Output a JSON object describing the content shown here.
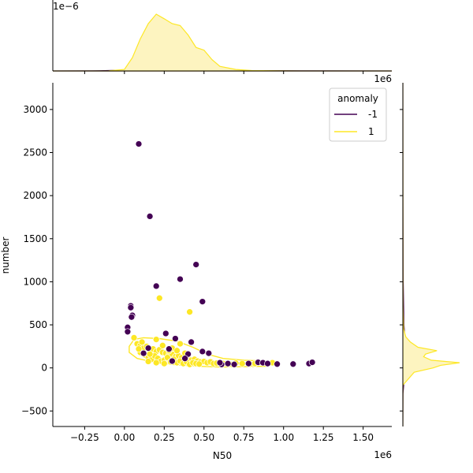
{
  "chart_data": {
    "type": "scatter",
    "kind": "jointplot",
    "xlabel": "N50",
    "ylabel": "number",
    "x_offset_label": "1e6",
    "y_offset_label_right": "1e6",
    "top_marginal_offset_label": "1e−6",
    "xlim": [
      -450000,
      1680000
    ],
    "ylim": [
      -680,
      3310
    ],
    "x_ticks": [
      -250000,
      0,
      250000,
      500000,
      750000,
      1000000,
      1250000,
      1500000
    ],
    "x_tick_labels": [
      "−0.25",
      "0.00",
      "0.25",
      "0.50",
      "0.75",
      "1.00",
      "1.25",
      "1.50"
    ],
    "y_ticks": [
      -500,
      0,
      500,
      1000,
      1500,
      2000,
      2500,
      3000
    ],
    "y_tick_labels": [
      "−500",
      "0",
      "500",
      "1000",
      "1500",
      "2000",
      "2500",
      "3000"
    ],
    "legend": {
      "title": "anomaly",
      "position": "top-right",
      "entries": [
        "-1",
        "1"
      ]
    },
    "colors": {
      "-1": "#440154",
      "1": "#fde725",
      "fill_1": "#fdf4c0"
    },
    "series": [
      {
        "name": "-1",
        "points": [
          [
            90000,
            2600
          ],
          [
            160000,
            1760
          ],
          [
            450000,
            1200
          ],
          [
            350000,
            1030
          ],
          [
            490000,
            770
          ],
          [
            200000,
            950
          ],
          [
            40000,
            720
          ],
          [
            40000,
            700
          ],
          [
            50000,
            610
          ],
          [
            45000,
            590
          ],
          [
            20000,
            470
          ],
          [
            20000,
            420
          ],
          [
            260000,
            400
          ],
          [
            320000,
            340
          ],
          [
            420000,
            300
          ],
          [
            150000,
            230
          ],
          [
            280000,
            220
          ],
          [
            400000,
            160
          ],
          [
            490000,
            190
          ],
          [
            530000,
            170
          ],
          [
            380000,
            110
          ],
          [
            300000,
            80
          ],
          [
            610000,
            40
          ],
          [
            690000,
            40
          ],
          [
            840000,
            65
          ],
          [
            870000,
            60
          ],
          [
            900000,
            50
          ],
          [
            960000,
            45
          ],
          [
            1060000,
            45
          ],
          [
            1160000,
            50
          ],
          [
            1180000,
            65
          ],
          [
            780000,
            50
          ],
          [
            650000,
            50
          ],
          [
            120000,
            170
          ],
          [
            600000,
            60
          ]
        ]
      },
      {
        "name": "1",
        "points": [
          [
            220000,
            810
          ],
          [
            410000,
            650
          ],
          [
            60000,
            350
          ],
          [
            80000,
            280
          ],
          [
            100000,
            260
          ],
          [
            120000,
            230
          ],
          [
            140000,
            250
          ],
          [
            160000,
            200
          ],
          [
            180000,
            220
          ],
          [
            200000,
            190
          ],
          [
            220000,
            210
          ],
          [
            240000,
            180
          ],
          [
            260000,
            170
          ],
          [
            280000,
            150
          ],
          [
            300000,
            160
          ],
          [
            320000,
            130
          ],
          [
            340000,
            140
          ],
          [
            360000,
            120
          ],
          [
            380000,
            100
          ],
          [
            400000,
            110
          ],
          [
            420000,
            90
          ],
          [
            440000,
            100
          ],
          [
            460000,
            80
          ],
          [
            480000,
            70
          ],
          [
            500000,
            75
          ],
          [
            520000,
            60
          ],
          [
            540000,
            70
          ],
          [
            560000,
            50
          ],
          [
            580000,
            55
          ],
          [
            620000,
            50
          ],
          [
            660000,
            45
          ],
          [
            700000,
            55
          ],
          [
            740000,
            50
          ],
          [
            790000,
            45
          ],
          [
            820000,
            50
          ],
          [
            930000,
            60
          ],
          [
            100000,
            180
          ],
          [
            130000,
            150
          ],
          [
            150000,
            120
          ],
          [
            170000,
            100
          ],
          [
            190000,
            140
          ],
          [
            210000,
            110
          ],
          [
            230000,
            80
          ],
          [
            250000,
            90
          ],
          [
            270000,
            120
          ],
          [
            290000,
            70
          ],
          [
            310000,
            100
          ],
          [
            330000,
            60
          ],
          [
            350000,
            80
          ],
          [
            370000,
            50
          ],
          [
            390000,
            70
          ],
          [
            410000,
            40
          ],
          [
            430000,
            60
          ],
          [
            450000,
            50
          ],
          [
            470000,
            45
          ],
          [
            90000,
            220
          ],
          [
            110000,
            300
          ],
          [
            200000,
            330
          ],
          [
            240000,
            260
          ],
          [
            300000,
            230
          ],
          [
            350000,
            280
          ],
          [
            160000,
            160
          ],
          [
            280000,
            200
          ],
          [
            380000,
            170
          ],
          [
            250000,
            50
          ],
          [
            200000,
            60
          ],
          [
            150000,
            75
          ],
          [
            330000,
            200
          ]
        ]
      }
    ],
    "marginal_x": [
      {
        "name": "-1",
        "x": [
          -450000,
          -200000,
          0,
          200000,
          400000,
          600000,
          800000,
          1000000,
          1200000,
          1680000
        ],
        "y": [
          0,
          0.002,
          0.02,
          0.04,
          0.03,
          0.015,
          0.008,
          0.006,
          0.003,
          0
        ]
      },
      {
        "name": "1",
        "x": [
          -450000,
          -100000,
          0,
          50000,
          100000,
          150000,
          200000,
          250000,
          300000,
          350000,
          400000,
          450000,
          500000,
          550000,
          600000,
          700000,
          800000,
          1000000,
          1680000
        ],
        "y": [
          0,
          0.002,
          0.04,
          0.35,
          0.85,
          1.25,
          1.5,
          1.38,
          1.25,
          1.2,
          0.95,
          0.62,
          0.55,
          0.3,
          0.12,
          0.04,
          0.01,
          0.002,
          0
        ]
      }
    ],
    "marginal_y": [
      {
        "name": "-1",
        "y": [
          -680,
          -300,
          0,
          200,
          500,
          1000,
          2000,
          3310
        ],
        "d": [
          0,
          0.005,
          0.06,
          0.08,
          0.03,
          0.01,
          0.003,
          0
        ]
      },
      {
        "name": "1",
        "y": [
          -680,
          -200,
          -50,
          0,
          30,
          60,
          90,
          130,
          160,
          200,
          240,
          300,
          360,
          450,
          700,
          3310
        ],
        "d": [
          0,
          0.003,
          0.3,
          0.8,
          1.0,
          1.5,
          0.75,
          0.55,
          0.6,
          0.9,
          0.4,
          0.2,
          0.08,
          0.02,
          0.005,
          0
        ]
      }
    ]
  }
}
